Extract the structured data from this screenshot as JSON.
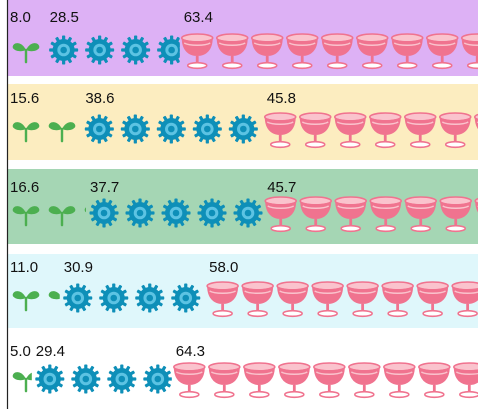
{
  "chart_data": {
    "type": "bar",
    "subtype": "stacked-pictograph",
    "orientation": "horizontal",
    "categories": [
      "",
      "",
      "",
      "",
      ""
    ],
    "series": [
      {
        "icon": "sprout-icon",
        "color": "#4caf50",
        "values": [
          8.0,
          15.6,
          16.6,
          11.0,
          5.0
        ]
      },
      {
        "icon": "gear-icon",
        "color": "#0e8fb8",
        "values": [
          28.5,
          38.6,
          37.7,
          30.9,
          29.4
        ]
      },
      {
        "icon": "wine-glass-icon",
        "color": "#f0738f",
        "values": [
          63.4,
          45.8,
          45.7,
          58.0,
          64.3
        ]
      }
    ],
    "row_backgrounds": [
      "#ddb1f5",
      "#fcedc0",
      "#a5d6b4",
      "#dff7fb",
      "#ffffff"
    ],
    "labels": [
      [
        "8.0",
        "28.5",
        "63.4"
      ],
      [
        "15.6",
        "38.6",
        "45.8"
      ],
      [
        "16.6",
        "37.7",
        "45.7"
      ],
      [
        "11.0",
        "30.9",
        "58.0"
      ],
      [
        "5.0",
        "29.4",
        "64.3"
      ]
    ],
    "grid": false,
    "legend": "none"
  }
}
